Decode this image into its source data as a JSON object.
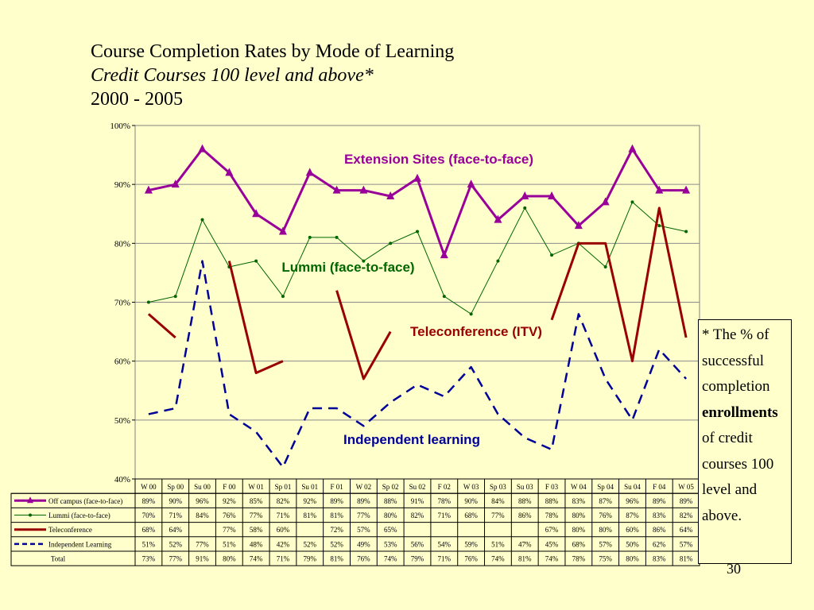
{
  "title": {
    "line1": "Course Completion Rates by Mode of Learning",
    "line2": "Credit Courses 100 level and above*",
    "line3": "2000 - 2005"
  },
  "note": {
    "part1": "* The % of successful completion",
    "bold": "enrollments",
    "part2": "of credit courses 100 level and above."
  },
  "page_number": "30",
  "chart_data": {
    "type": "line",
    "categories": [
      "W 00",
      "Sp 00",
      "Su 00",
      "F 00",
      "W 01",
      "Sp 01",
      "Su 01",
      "F 01",
      "W 02",
      "Sp 02",
      "Su 02",
      "F 02",
      "W 03",
      "Sp 03",
      "Su 03",
      "F 03",
      "W 04",
      "Sp 04",
      "Su 04",
      "F 04",
      "W 05"
    ],
    "ylim": [
      40,
      100
    ],
    "yticks": [
      40,
      50,
      60,
      70,
      80,
      90,
      100
    ],
    "ytick_labels": [
      "40%",
      "50%",
      "60%",
      "70%",
      "80%",
      "90%",
      "100%"
    ],
    "grid": true,
    "annotations": [
      {
        "text": "Extension Sites (face-to-face)",
        "color": "#990099"
      },
      {
        "text": "Lummi (face-to-face)",
        "color": "#006600"
      },
      {
        "text": "Teleconference (ITV)",
        "color": "#990000"
      },
      {
        "text": "Independent learning",
        "color": "#000099"
      }
    ],
    "series": [
      {
        "name": "Off campus (face-to-face)",
        "color": "#990099",
        "style": "thick-triangle",
        "values": [
          89,
          90,
          96,
          92,
          85,
          82,
          92,
          89,
          89,
          88,
          91,
          78,
          90,
          84,
          88,
          88,
          83,
          87,
          96,
          89,
          89
        ]
      },
      {
        "name": "Lummi (face-to-face)",
        "color": "#006600",
        "style": "thin-dot",
        "values": [
          70,
          71,
          84,
          76,
          77,
          71,
          81,
          81,
          77,
          80,
          82,
          71,
          68,
          77,
          86,
          78,
          80,
          76,
          87,
          83,
          82
        ]
      },
      {
        "name": "Teleconference",
        "color": "#990000",
        "style": "thick",
        "values": [
          68,
          64,
          null,
          77,
          58,
          60,
          null,
          72,
          57,
          65,
          null,
          null,
          null,
          null,
          null,
          67,
          80,
          80,
          60,
          86,
          64
        ]
      },
      {
        "name": "Independent Learning",
        "color": "#000099",
        "style": "dashed",
        "values": [
          51,
          52,
          77,
          51,
          48,
          42,
          52,
          52,
          49,
          53,
          56,
          54,
          59,
          51,
          47,
          45,
          68,
          57,
          50,
          62,
          57
        ]
      }
    ],
    "total": {
      "name": "Total",
      "values": [
        73,
        77,
        91,
        80,
        74,
        71,
        79,
        81,
        76,
        74,
        79,
        71,
        76,
        74,
        81,
        74,
        78,
        75,
        80,
        83,
        81
      ]
    }
  }
}
